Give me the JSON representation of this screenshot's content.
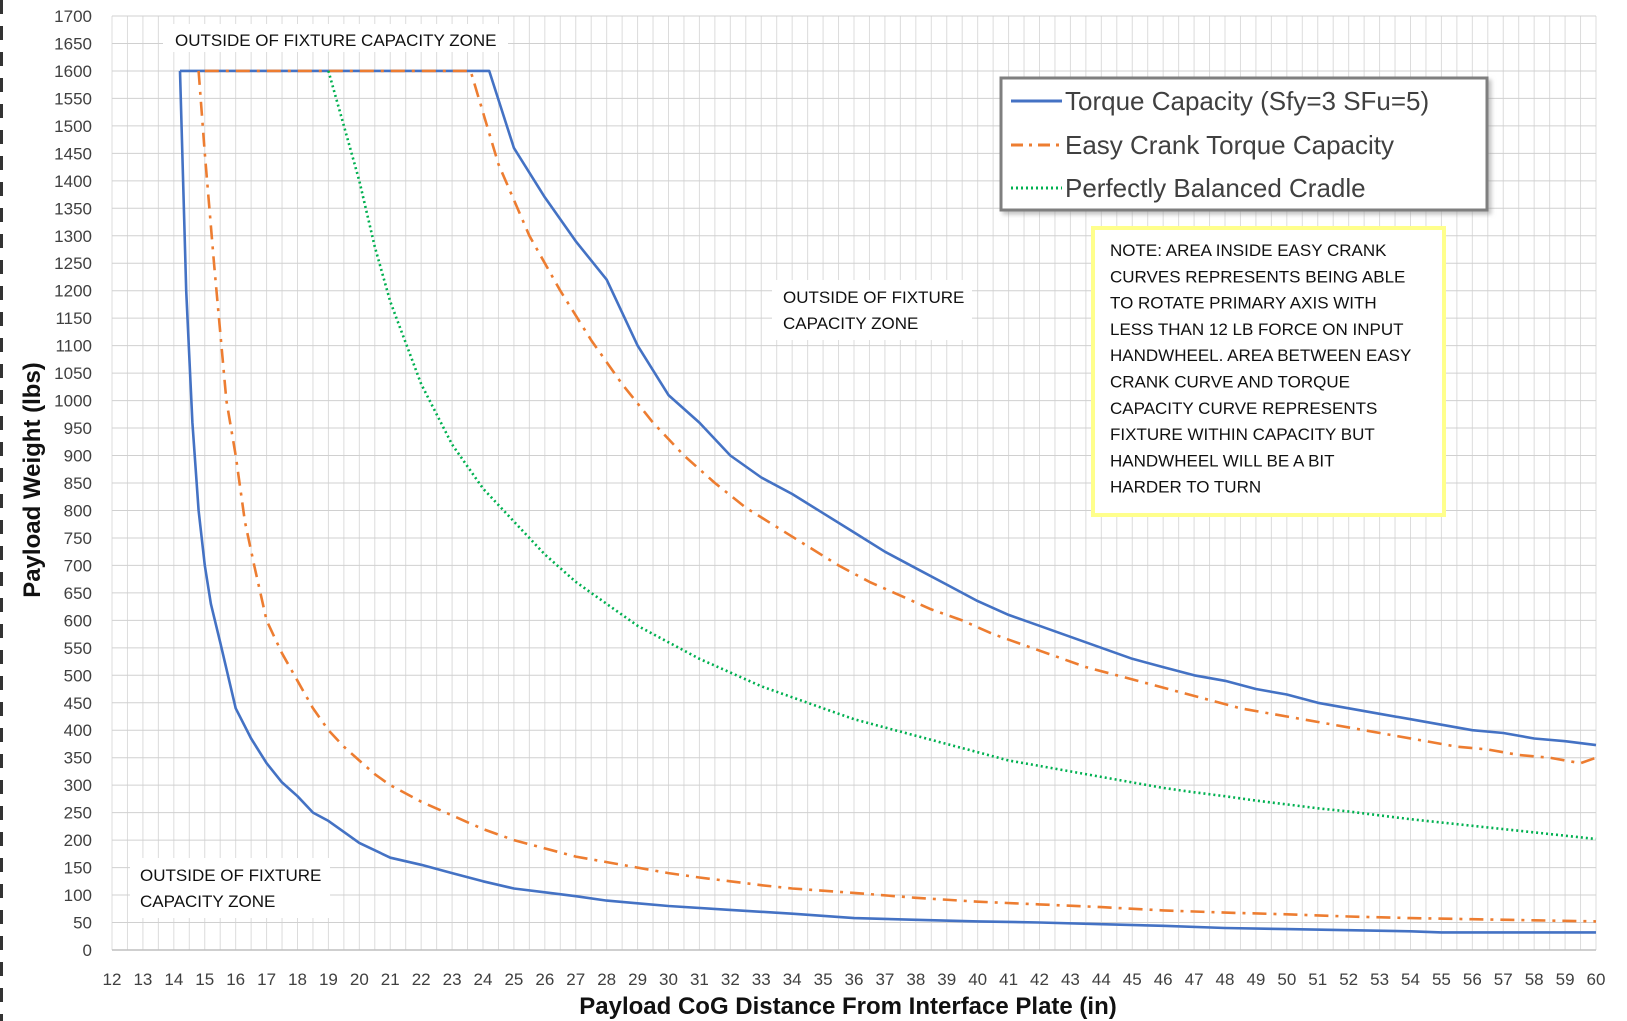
{
  "chart_data": {
    "type": "line",
    "title": "",
    "xlabel": "Payload CoG Distance From Interface Plate (in)",
    "ylabel": "Payload Weight (lbs)",
    "xlim": [
      12,
      60
    ],
    "ylim": [
      0,
      1700
    ],
    "x_ticks": [
      12,
      13,
      14,
      15,
      16,
      17,
      18,
      19,
      20,
      21,
      22,
      23,
      24,
      25,
      26,
      27,
      28,
      29,
      30,
      31,
      32,
      33,
      34,
      35,
      36,
      37,
      38,
      39,
      40,
      41,
      42,
      43,
      44,
      45,
      46,
      47,
      48,
      49,
      50,
      51,
      52,
      53,
      54,
      55,
      56,
      57,
      58,
      59,
      60
    ],
    "y_ticks": [
      0,
      50,
      100,
      150,
      200,
      250,
      300,
      350,
      400,
      450,
      500,
      550,
      600,
      650,
      700,
      750,
      800,
      850,
      900,
      950,
      1000,
      1050,
      1100,
      1150,
      1200,
      1250,
      1300,
      1350,
      1400,
      1450,
      1500,
      1550,
      1600,
      1650,
      1700
    ],
    "grid": true,
    "legend_position": "top-right",
    "series": [
      {
        "name": "Torque Capacity (Sfy=3 SFu=5)",
        "color": "#4472C4",
        "style": "solid",
        "points": [
          [
            14.2,
            1600
          ],
          [
            24.2,
            1600
          ],
          [
            25,
            1460
          ],
          [
            26,
            1370
          ],
          [
            27,
            1290
          ],
          [
            28,
            1220
          ],
          [
            29,
            1100
          ],
          [
            30,
            1010
          ],
          [
            31,
            960
          ],
          [
            32,
            900
          ],
          [
            33,
            860
          ],
          [
            34,
            830
          ],
          [
            35,
            795
          ],
          [
            36,
            760
          ],
          [
            37,
            725
          ],
          [
            38,
            695
          ],
          [
            39,
            665
          ],
          [
            40,
            635
          ],
          [
            41,
            610
          ],
          [
            42,
            590
          ],
          [
            43,
            570
          ],
          [
            44,
            550
          ],
          [
            45,
            530
          ],
          [
            46,
            515
          ],
          [
            47,
            500
          ],
          [
            48,
            490
          ],
          [
            49,
            475
          ],
          [
            50,
            465
          ],
          [
            51,
            450
          ],
          [
            52,
            440
          ],
          [
            53,
            430
          ],
          [
            54,
            420
          ],
          [
            55,
            410
          ],
          [
            56,
            400
          ],
          [
            57,
            395
          ],
          [
            58,
            385
          ],
          [
            59,
            380
          ],
          [
            60,
            373
          ]
        ],
        "lower_points": [
          [
            14.2,
            1600
          ],
          [
            14.4,
            1200
          ],
          [
            14.6,
            960
          ],
          [
            14.8,
            800
          ],
          [
            15,
            700
          ],
          [
            15.2,
            630
          ],
          [
            15.5,
            560
          ],
          [
            16,
            440
          ],
          [
            16.5,
            385
          ],
          [
            17,
            340
          ],
          [
            17.5,
            305
          ],
          [
            18,
            280
          ],
          [
            18.5,
            250
          ],
          [
            19,
            235
          ],
          [
            19.5,
            215
          ],
          [
            20,
            195
          ],
          [
            21,
            168
          ],
          [
            22,
            155
          ],
          [
            23,
            140
          ],
          [
            24,
            125
          ],
          [
            25,
            112
          ],
          [
            26,
            105
          ],
          [
            27,
            98
          ],
          [
            28,
            90
          ],
          [
            29,
            85
          ],
          [
            30,
            80
          ],
          [
            32,
            73
          ],
          [
            34,
            66
          ],
          [
            36,
            58
          ],
          [
            38,
            55
          ],
          [
            40,
            52
          ],
          [
            42,
            50
          ],
          [
            44,
            47
          ],
          [
            46,
            44
          ],
          [
            48,
            40
          ],
          [
            50,
            38
          ],
          [
            52,
            36
          ],
          [
            54,
            34
          ],
          [
            55,
            32
          ],
          [
            60,
            32
          ]
        ]
      },
      {
        "name": "Easy Crank Torque Capacity",
        "color": "#ED7D31",
        "style": "dash-dot",
        "points": [
          [
            15,
            1600
          ],
          [
            23.6,
            1600
          ],
          [
            24.5,
            1430
          ],
          [
            25.5,
            1300
          ],
          [
            26.5,
            1200
          ],
          [
            27.5,
            1110
          ],
          [
            28.5,
            1030
          ],
          [
            29.5,
            960
          ],
          [
            30.5,
            900
          ],
          [
            31.5,
            850
          ],
          [
            32.5,
            805
          ],
          [
            33.5,
            770
          ],
          [
            34.5,
            735
          ],
          [
            35.5,
            700
          ],
          [
            36.5,
            670
          ],
          [
            37.5,
            645
          ],
          [
            38.5,
            620
          ],
          [
            39.5,
            600
          ],
          [
            40.5,
            575
          ],
          [
            41.5,
            555
          ],
          [
            42.5,
            535
          ],
          [
            43.5,
            515
          ],
          [
            44.5,
            500
          ],
          [
            45.5,
            485
          ],
          [
            46.5,
            470
          ],
          [
            47.5,
            455
          ],
          [
            48.5,
            440
          ],
          [
            49.5,
            430
          ],
          [
            50.5,
            420
          ],
          [
            51.5,
            410
          ],
          [
            52.5,
            400
          ],
          [
            53.5,
            390
          ],
          [
            54.5,
            380
          ],
          [
            55.5,
            370
          ],
          [
            56.5,
            365
          ],
          [
            57.5,
            355
          ],
          [
            58.5,
            350
          ],
          [
            59.5,
            340
          ],
          [
            60,
            350
          ]
        ],
        "lower_points": [
          [
            14.8,
            1600
          ],
          [
            15,
            1450
          ],
          [
            15.3,
            1250
          ],
          [
            15.7,
            1000
          ],
          [
            16,
            900
          ],
          [
            16.3,
            780
          ],
          [
            16.6,
            700
          ],
          [
            17,
            600
          ],
          [
            17.5,
            540
          ],
          [
            18,
            490
          ],
          [
            18.5,
            440
          ],
          [
            19,
            400
          ],
          [
            19.5,
            370
          ],
          [
            20,
            345
          ],
          [
            20.5,
            320
          ],
          [
            21,
            300
          ],
          [
            22,
            270
          ],
          [
            23,
            245
          ],
          [
            24,
            220
          ],
          [
            25,
            200
          ],
          [
            26,
            185
          ],
          [
            27,
            170
          ],
          [
            28,
            160
          ],
          [
            29,
            150
          ],
          [
            30,
            140
          ],
          [
            31,
            132
          ],
          [
            32,
            125
          ],
          [
            33,
            118
          ],
          [
            34,
            112
          ],
          [
            35,
            108
          ],
          [
            36,
            104
          ],
          [
            38,
            95
          ],
          [
            40,
            88
          ],
          [
            42,
            83
          ],
          [
            44,
            78
          ],
          [
            46,
            72
          ],
          [
            48,
            68
          ],
          [
            50,
            65
          ],
          [
            52,
            61
          ],
          [
            54,
            58
          ],
          [
            56,
            56
          ],
          [
            58,
            54
          ],
          [
            60,
            52
          ]
        ]
      },
      {
        "name": "Perfectly Balanced Cradle",
        "color": "#00B050",
        "style": "dotted",
        "points": [
          [
            19,
            1600
          ],
          [
            19.5,
            1500
          ],
          [
            20,
            1400
          ],
          [
            20.5,
            1280
          ],
          [
            21,
            1180
          ],
          [
            22,
            1030
          ],
          [
            23,
            920
          ],
          [
            24,
            840
          ],
          [
            25,
            780
          ],
          [
            26,
            720
          ],
          [
            27,
            670
          ],
          [
            28,
            630
          ],
          [
            29,
            590
          ],
          [
            30,
            560
          ],
          [
            31,
            530
          ],
          [
            32,
            505
          ],
          [
            33,
            480
          ],
          [
            34,
            460
          ],
          [
            35,
            440
          ],
          [
            36,
            420
          ],
          [
            37,
            405
          ],
          [
            38,
            390
          ],
          [
            39,
            375
          ],
          [
            40,
            360
          ],
          [
            41,
            345
          ],
          [
            42,
            335
          ],
          [
            43,
            325
          ],
          [
            44,
            315
          ],
          [
            45,
            305
          ],
          [
            46,
            295
          ],
          [
            47,
            287
          ],
          [
            48,
            280
          ],
          [
            49,
            272
          ],
          [
            50,
            265
          ],
          [
            51,
            258
          ],
          [
            52,
            252
          ],
          [
            53,
            245
          ],
          [
            54,
            238
          ],
          [
            55,
            232
          ],
          [
            56,
            226
          ],
          [
            57,
            220
          ],
          [
            58,
            214
          ],
          [
            59,
            208
          ],
          [
            60,
            202
          ]
        ]
      }
    ],
    "annotations": {
      "zone_top": "OUTSIDE OF FIXTURE CAPACITY ZONE",
      "zone_right_line1": "OUTSIDE OF FIXTURE",
      "zone_right_line2": "CAPACITY ZONE",
      "zone_bottom_line1": "OUTSIDE OF FIXTURE",
      "zone_bottom_line2": "CAPACITY ZONE",
      "note_lines": [
        "NOTE: AREA INSIDE EASY CRANK",
        "CURVES REPRESENTS BEING ABLE",
        "TO ROTATE PRIMARY AXIS WITH",
        "LESS THAN 12 LB FORCE ON INPUT",
        "HANDWHEEL.  AREA BETWEEN EASY",
        "CRANK CURVE AND TORQUE",
        "CAPACITY CURVE REPRESENTS",
        "FIXTURE WITHIN CAPACITY BUT",
        "HANDWHEEL WILL BE A BIT",
        "HARDER TO TURN"
      ]
    }
  }
}
